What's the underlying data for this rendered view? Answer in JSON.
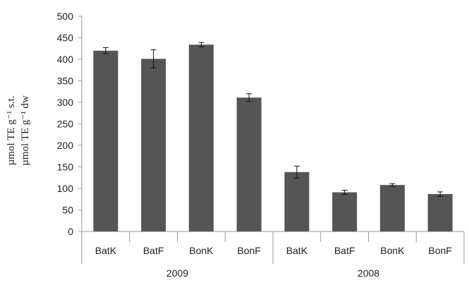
{
  "chart_data": {
    "type": "bar",
    "title": "",
    "ylabel_lines": [
      "µmol TE g⁻¹ s.t.",
      "µmol TE g⁻¹ dw"
    ],
    "ylim": [
      0,
      500
    ],
    "yticks": [
      0,
      50,
      100,
      150,
      200,
      250,
      300,
      350,
      400,
      450,
      500
    ],
    "categories": [
      "BatK",
      "BatF",
      "BonK",
      "BonF",
      "BatK",
      "BatF",
      "BonK",
      "BonF"
    ],
    "groups": [
      {
        "label": "2009",
        "start": 0,
        "count": 4
      },
      {
        "label": "2008",
        "start": 4,
        "count": 4
      }
    ],
    "values": [
      420,
      401,
      434,
      311,
      138,
      91,
      108,
      87
    ],
    "errors": [
      7,
      21,
      5,
      9,
      14,
      5,
      3,
      5
    ],
    "bar_color": "#555555",
    "grid": false,
    "legend": "none"
  }
}
